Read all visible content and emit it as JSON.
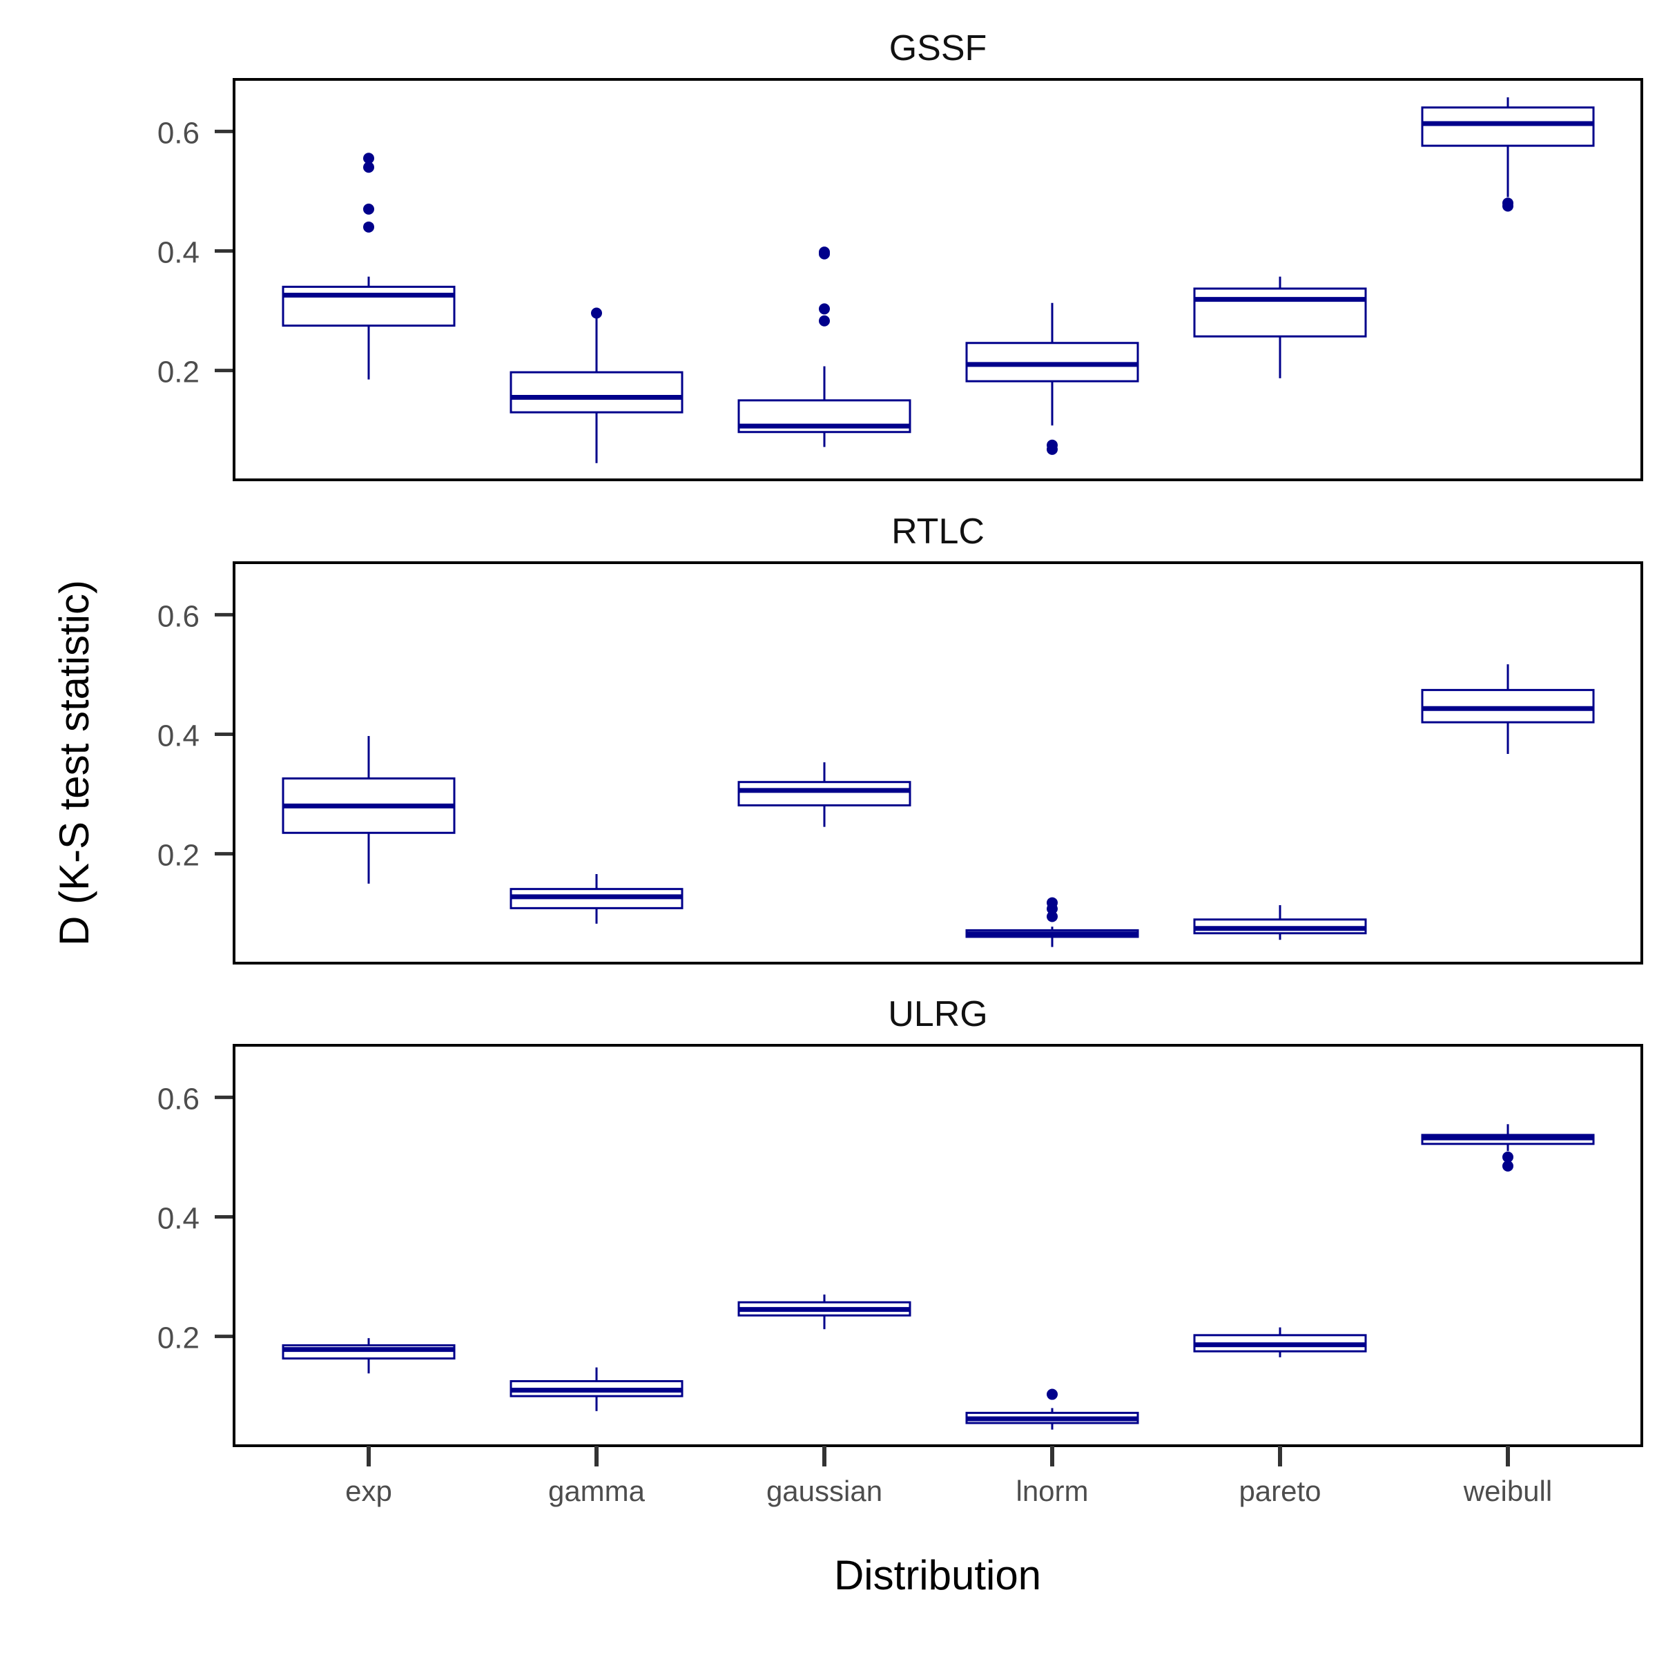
{
  "chart_data": {
    "type": "boxplot",
    "xlabel": "Distribution",
    "ylabel": "D (K-S test statistic)",
    "categories": [
      "exp",
      "gamma",
      "gaussian",
      "lnorm",
      "pareto",
      "weibull"
    ],
    "y_ticks": [
      "0.2",
      "0.4",
      "0.6"
    ],
    "y_tick_values": [
      0.2,
      0.4,
      0.6
    ],
    "ylim": [
      0.017,
      0.687
    ],
    "color": "#00008b",
    "grid": false,
    "panels": [
      {
        "title": "GSSF",
        "boxes": [
          {
            "category": "exp",
            "whisker_low": 0.185,
            "q1": 0.275,
            "median": 0.326,
            "q3": 0.34,
            "whisker_high": 0.357,
            "outliers": [
              0.44,
              0.47,
              0.54,
              0.555
            ]
          },
          {
            "category": "gamma",
            "whisker_low": 0.045,
            "q1": 0.13,
            "median": 0.155,
            "q3": 0.197,
            "whisker_high": 0.295,
            "outliers": [
              0.296
            ]
          },
          {
            "category": "gaussian",
            "whisker_low": 0.072,
            "q1": 0.097,
            "median": 0.107,
            "q3": 0.15,
            "whisker_high": 0.207,
            "outliers": [
              0.283,
              0.303,
              0.395,
              0.398
            ]
          },
          {
            "category": "lnorm",
            "whisker_low": 0.108,
            "q1": 0.182,
            "median": 0.21,
            "q3": 0.246,
            "whisker_high": 0.313,
            "outliers": [
              0.068,
              0.075
            ]
          },
          {
            "category": "pareto",
            "whisker_low": 0.187,
            "q1": 0.257,
            "median": 0.319,
            "q3": 0.337,
            "whisker_high": 0.357,
            "outliers": []
          },
          {
            "category": "weibull",
            "whisker_low": 0.49,
            "q1": 0.576,
            "median": 0.613,
            "q3": 0.64,
            "whisker_high": 0.657,
            "outliers": [
              0.475,
              0.48
            ]
          }
        ]
      },
      {
        "title": "RTLC",
        "boxes": [
          {
            "category": "exp",
            "whisker_low": 0.15,
            "q1": 0.235,
            "median": 0.28,
            "q3": 0.326,
            "whisker_high": 0.397,
            "outliers": []
          },
          {
            "category": "gamma",
            "whisker_low": 0.083,
            "q1": 0.109,
            "median": 0.128,
            "q3": 0.141,
            "whisker_high": 0.166,
            "outliers": []
          },
          {
            "category": "gaussian",
            "whisker_low": 0.245,
            "q1": 0.281,
            "median": 0.306,
            "q3": 0.32,
            "whisker_high": 0.353,
            "outliers": []
          },
          {
            "category": "lnorm",
            "whisker_low": 0.044,
            "q1": 0.061,
            "median": 0.066,
            "q3": 0.072,
            "whisker_high": 0.078,
            "outliers": [
              0.095,
              0.108,
              0.118
            ]
          },
          {
            "category": "pareto",
            "whisker_low": 0.056,
            "q1": 0.067,
            "median": 0.075,
            "q3": 0.09,
            "whisker_high": 0.114,
            "outliers": []
          },
          {
            "category": "weibull",
            "whisker_low": 0.367,
            "q1": 0.42,
            "median": 0.443,
            "q3": 0.474,
            "whisker_high": 0.517,
            "outliers": []
          }
        ]
      },
      {
        "title": "ULRG",
        "boxes": [
          {
            "category": "exp",
            "whisker_low": 0.138,
            "q1": 0.163,
            "median": 0.178,
            "q3": 0.185,
            "whisker_high": 0.197,
            "outliers": []
          },
          {
            "category": "gamma",
            "whisker_low": 0.075,
            "q1": 0.1,
            "median": 0.11,
            "q3": 0.125,
            "whisker_high": 0.148,
            "outliers": []
          },
          {
            "category": "gaussian",
            "whisker_low": 0.212,
            "q1": 0.235,
            "median": 0.245,
            "q3": 0.257,
            "whisker_high": 0.27,
            "outliers": []
          },
          {
            "category": "lnorm",
            "whisker_low": 0.044,
            "q1": 0.055,
            "median": 0.062,
            "q3": 0.072,
            "whisker_high": 0.08,
            "outliers": [
              0.103
            ]
          },
          {
            "category": "pareto",
            "whisker_low": 0.165,
            "q1": 0.175,
            "median": 0.186,
            "q3": 0.202,
            "whisker_high": 0.215,
            "outliers": []
          },
          {
            "category": "weibull",
            "whisker_low": 0.51,
            "q1": 0.522,
            "median": 0.532,
            "q3": 0.537,
            "whisker_high": 0.555,
            "outliers": [
              0.485,
              0.5
            ]
          }
        ]
      }
    ]
  }
}
